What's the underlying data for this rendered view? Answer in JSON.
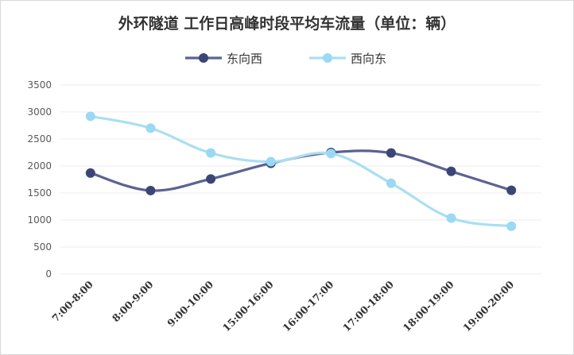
{
  "chart_data": {
    "type": "line",
    "title": "外环隧道 工作日高峰时段平均车流量（单位：辆）",
    "categories": [
      "7:00-8:00",
      "8:00-9:00",
      "9:00-10:00",
      "15:00-16:00",
      "16:00-17:00",
      "17:00-18:00",
      "18:00-19:00",
      "19:00-20:00"
    ],
    "series": [
      {
        "name": "东向西",
        "color": "#5b6392",
        "marker_color": "#3c4676",
        "values": [
          1870,
          1545,
          1760,
          2050,
          2250,
          2240,
          1900,
          1550
        ]
      },
      {
        "name": "西向东",
        "color": "#a9dff2",
        "marker_color": "#9ad9f3",
        "values": [
          2920,
          2700,
          2240,
          2080,
          2230,
          1680,
          1035,
          885
        ]
      }
    ],
    "y_ticks": [
      "0",
      "500",
      "1000",
      "1500",
      "2000",
      "2500",
      "3000",
      "3500"
    ],
    "ylim": [
      0,
      3500
    ],
    "smooth": true,
    "grid": true,
    "legend_position": "top"
  }
}
